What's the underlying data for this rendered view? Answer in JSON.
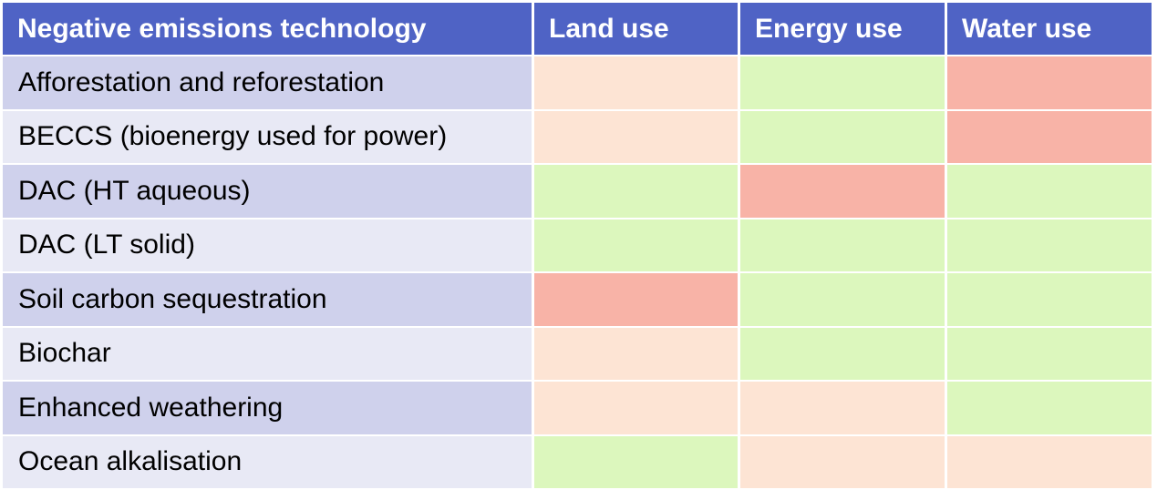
{
  "table": {
    "header": [
      "Negative emissions technology",
      "Land use",
      "Energy use",
      "Water use"
    ],
    "rows": [
      "Afforestation and reforestation",
      "BECCS (bioenergy used for power)",
      "DAC (HT aqueous)",
      "DAC (LT solid)",
      "Soil carbon sequestration",
      "Biochar",
      "Enhanced weathering",
      "Ocean alkalisation"
    ],
    "cell_colors": [
      [
        "#fde4d4",
        "#dcf7bd",
        "#f8b3a7"
      ],
      [
        "#fde4d4",
        "#dcf7bd",
        "#f8b3a7"
      ],
      [
        "#dcf7bd",
        "#f8b3a7",
        "#dcf7bd"
      ],
      [
        "#dcf7bd",
        "#dcf7bd",
        "#dcf7bd"
      ],
      [
        "#f8b3a7",
        "#dcf7bd",
        "#dcf7bd"
      ],
      [
        "#fde4d4",
        "#dcf7bd",
        "#dcf7bd"
      ],
      [
        "#fde4d4",
        "#fde4d4",
        "#dcf7bd"
      ],
      [
        "#dcf7bd",
        "#fde4d4",
        "#fde4d4"
      ]
    ]
  }
}
